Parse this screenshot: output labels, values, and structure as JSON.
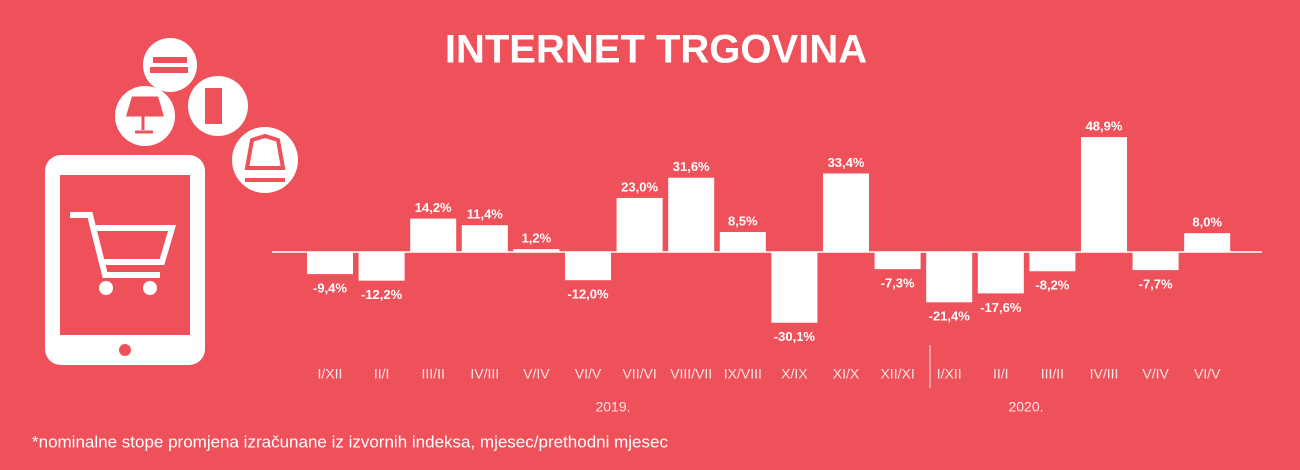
{
  "chart_data": {
    "type": "bar",
    "title": "INTERNET TRGOVINA",
    "categories": [
      "I/XII",
      "II/I",
      "III/II",
      "IV/III",
      "V/IV",
      "VI/V",
      "VII/VI",
      "VIII/VII",
      "IX/VIII",
      "X/IX",
      "XI/X",
      "XII/XI",
      "I/XII",
      "II/I",
      "III/II",
      "IV/III",
      "V/IV",
      "VI/V"
    ],
    "values": [
      -9.4,
      -12.2,
      14.2,
      11.4,
      1.2,
      -12.0,
      23.0,
      31.6,
      8.5,
      -30.1,
      33.4,
      -7.3,
      -21.4,
      -17.6,
      -8.2,
      48.9,
      -7.7,
      8.0
    ],
    "value_labels": [
      "-9,4%",
      "-12,2%",
      "14,2%",
      "11,4%",
      "1,2%",
      "-12,0%",
      "23,0%",
      "31,6%",
      "8,5%",
      "-30,1%",
      "33,4%",
      "-7,3%",
      "-21,4%",
      "-17,6%",
      "-8,2%",
      "48,9%",
      "-7,7%",
      "8,0%"
    ],
    "color": "#ffffff",
    "year_labels": [
      "2019.",
      "2020."
    ],
    "note": "*nominalne stope promjena izračunane iz izvornih indeksa, mjesec/prethodni mjesec"
  }
}
